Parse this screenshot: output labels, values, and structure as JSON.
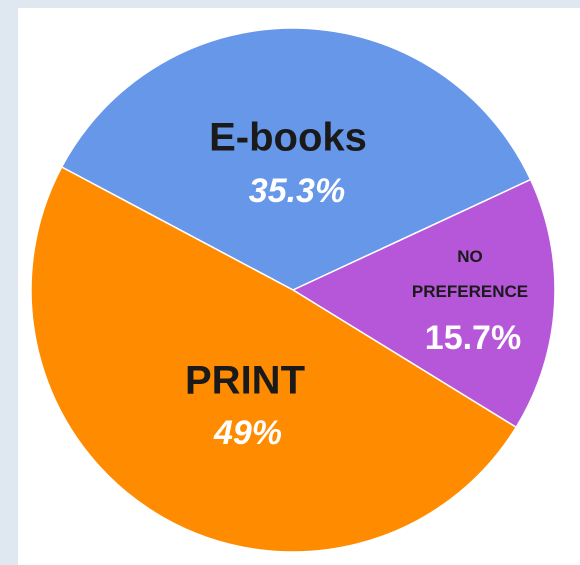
{
  "chart_data": {
    "type": "pie",
    "categories": [
      "E-books",
      "NO PREFERENCE",
      "PRINT"
    ],
    "values": [
      35.3,
      15.7,
      49
    ],
    "value_labels": [
      "35.3%",
      "15.7%",
      "49%"
    ],
    "colors": [
      "#6797e8",
      "#b656d8",
      "#ff8c00"
    ]
  }
}
